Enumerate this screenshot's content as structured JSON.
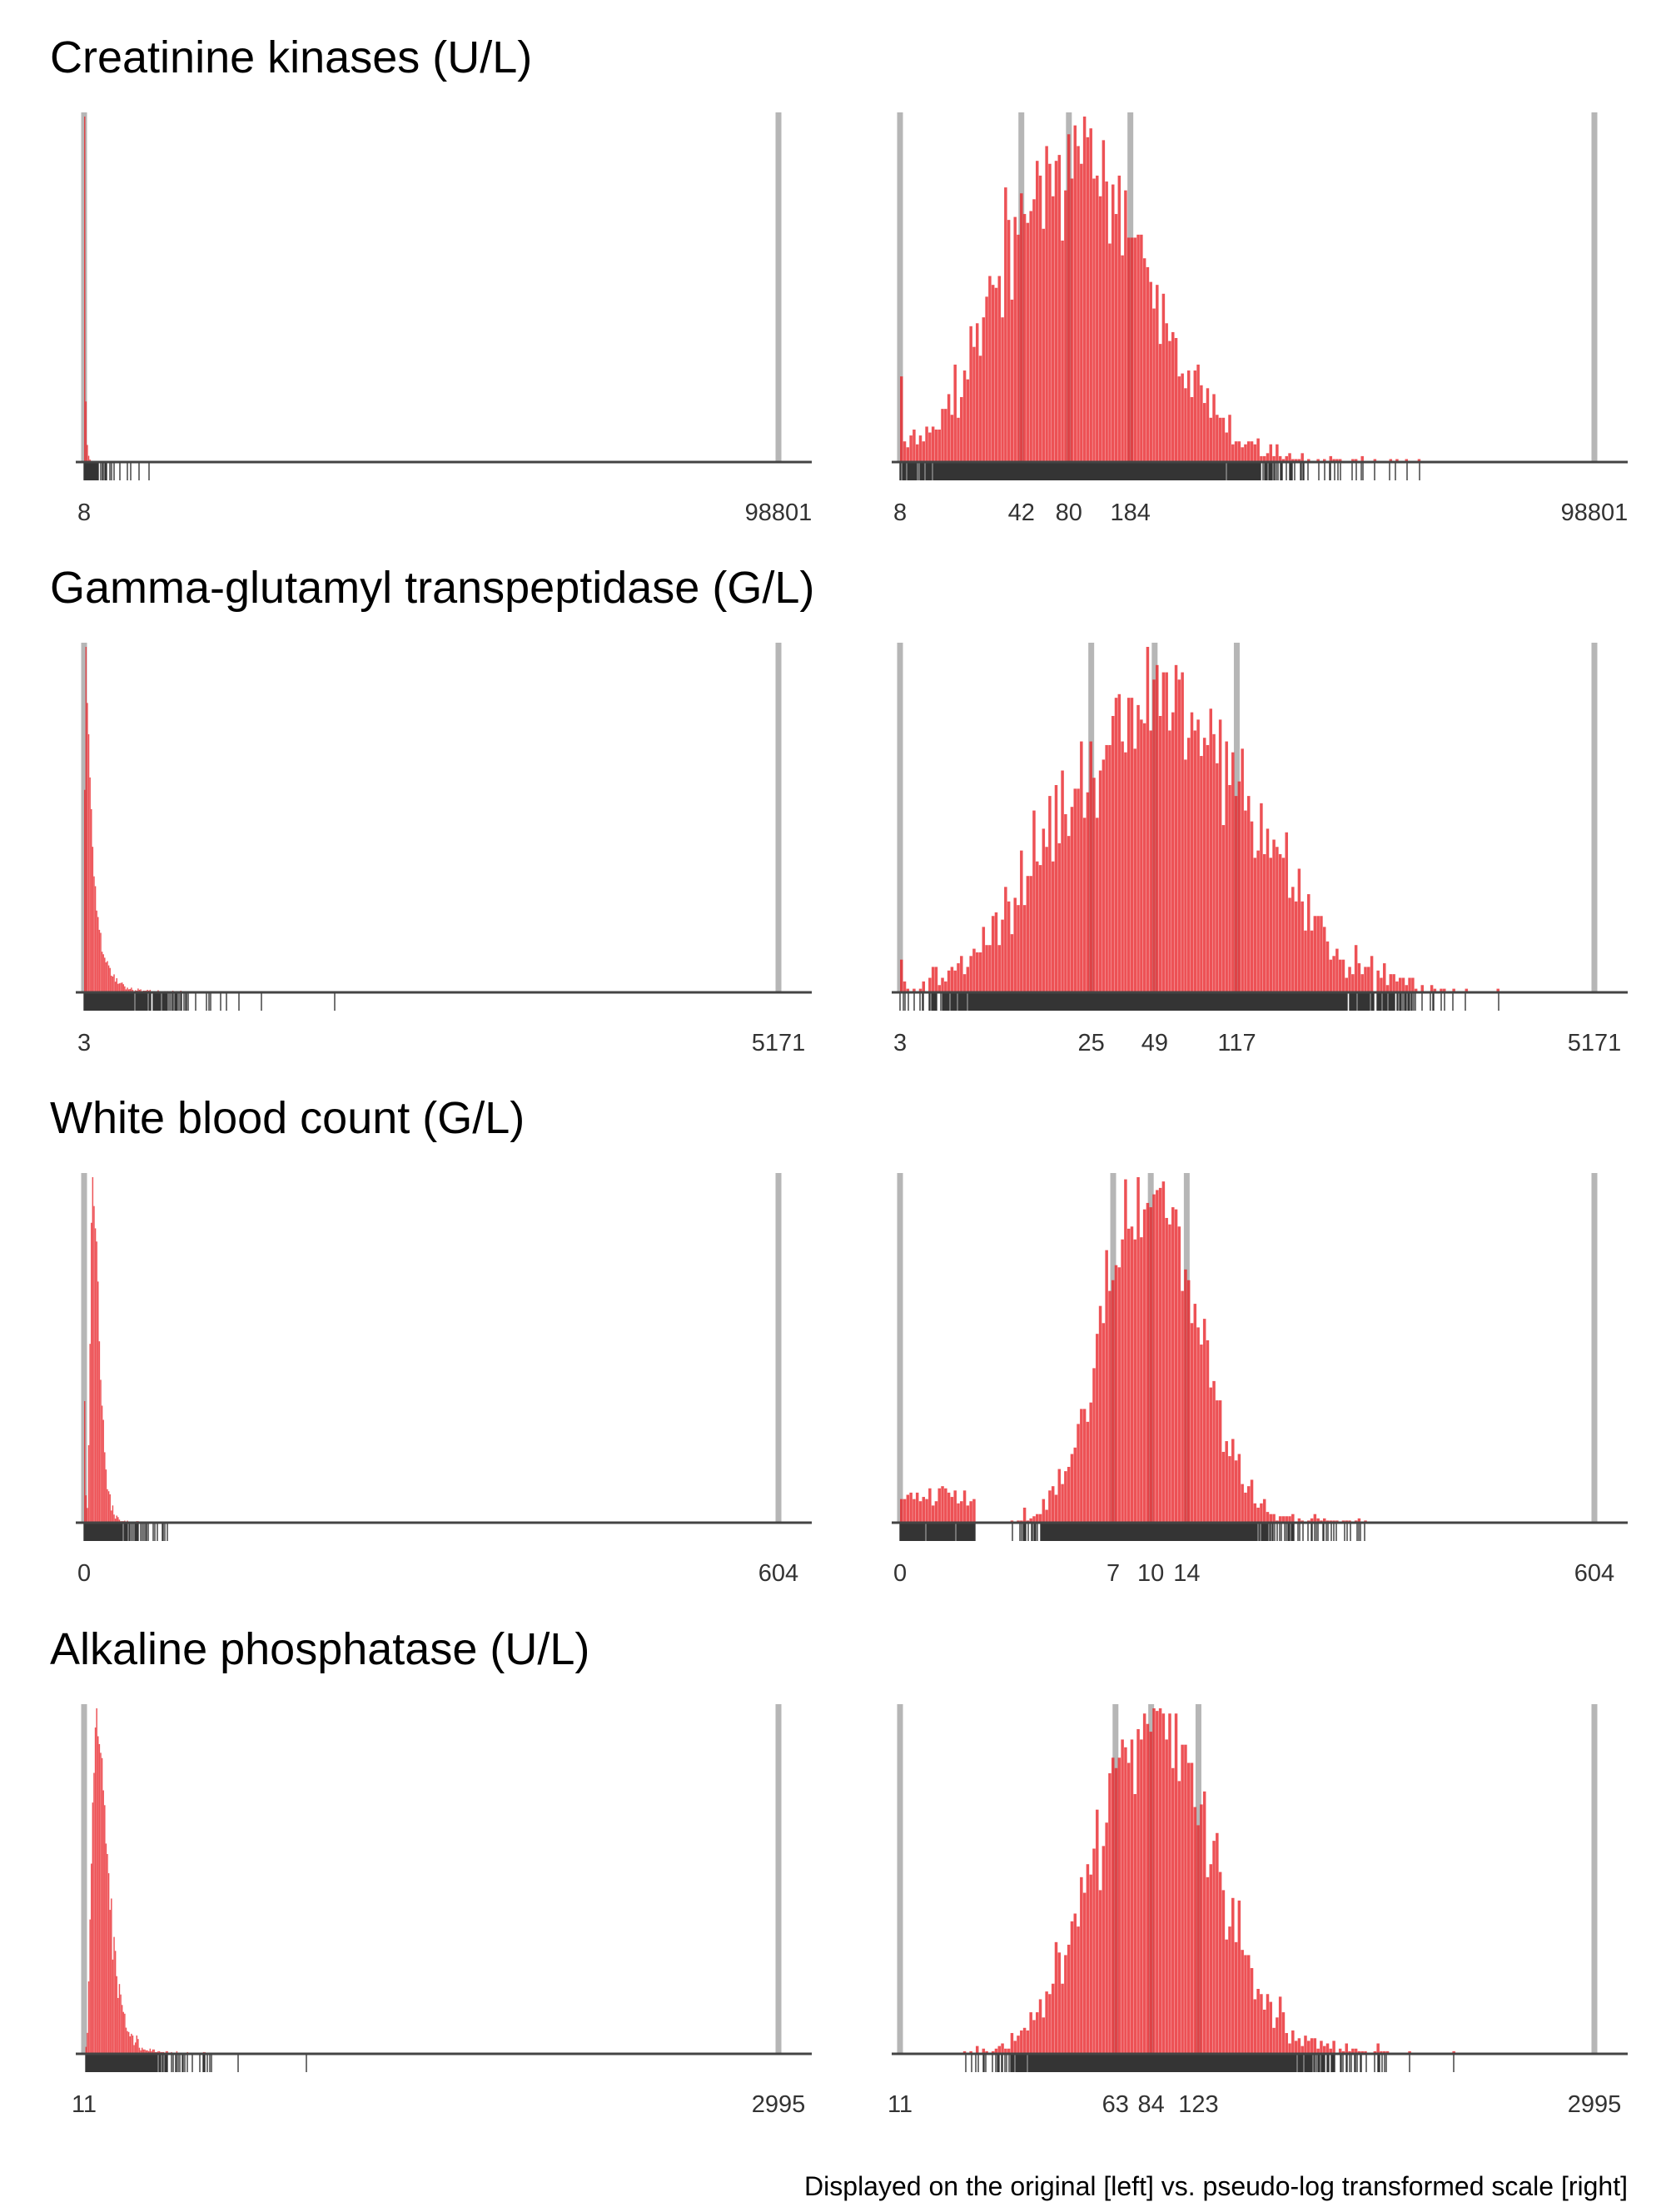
{
  "caption": "Displayed on the original [left] vs. pseudo-log transformed scale [right]",
  "colors": {
    "bar": "#E8262A",
    "ref_line": "#9E9E9E",
    "axis": "#444444",
    "rug": "#000000"
  },
  "chart_data": [
    {
      "type": "bar",
      "title": "Creatinine kinases (U/L)",
      "subplots": [
        {
          "scale": "original",
          "xlim": [
            8,
            98801
          ],
          "tick_labels": [
            "8",
            "98801"
          ],
          "reference_lines": [
            8,
            98801
          ]
        },
        {
          "scale": "pseudo-log",
          "xlim": [
            8,
            98801
          ],
          "tick_labels": [
            "8",
            "42",
            "80",
            "184",
            "98801"
          ],
          "reference_lines": [
            8,
            42,
            80,
            184,
            98801
          ],
          "quantile_ticks": [
            42,
            80,
            184
          ]
        }
      ]
    },
    {
      "type": "bar",
      "title": "Gamma-glutamyl transpeptidase (G/L)",
      "subplots": [
        {
          "scale": "original",
          "xlim": [
            3,
            5171
          ],
          "tick_labels": [
            "3",
            "5171"
          ],
          "reference_lines": [
            3,
            5171
          ]
        },
        {
          "scale": "pseudo-log",
          "xlim": [
            3,
            5171
          ],
          "tick_labels": [
            "3",
            "25",
            "49",
            "117",
            "5171"
          ],
          "reference_lines": [
            3,
            25,
            49,
            117,
            5171
          ],
          "quantile_ticks": [
            25,
            49,
            117
          ]
        }
      ]
    },
    {
      "type": "bar",
      "title": "White blood count (G/L)",
      "subplots": [
        {
          "scale": "original",
          "xlim": [
            0,
            604
          ],
          "tick_labels": [
            "0",
            "604"
          ],
          "reference_lines": [
            0,
            604
          ]
        },
        {
          "scale": "pseudo-log",
          "xlim": [
            0,
            604
          ],
          "tick_labels": [
            "0",
            "7",
            "10",
            "14",
            "604"
          ],
          "reference_lines": [
            0,
            7,
            10,
            14,
            604
          ],
          "quantile_ticks": [
            7,
            10,
            14
          ]
        }
      ]
    },
    {
      "type": "bar",
      "title": "Alkaline phosphatase (U/L)",
      "subplots": [
        {
          "scale": "original",
          "xlim": [
            11,
            2995
          ],
          "tick_labels": [
            "11",
            "2995"
          ],
          "reference_lines": [
            11,
            2995
          ]
        },
        {
          "scale": "pseudo-log",
          "xlim": [
            11,
            2995
          ],
          "tick_labels": [
            "11",
            "63",
            "84",
            "123",
            "2995"
          ],
          "reference_lines": [
            11,
            63,
            84,
            123,
            2995
          ],
          "quantile_ticks": [
            63,
            84,
            123
          ]
        }
      ]
    }
  ]
}
